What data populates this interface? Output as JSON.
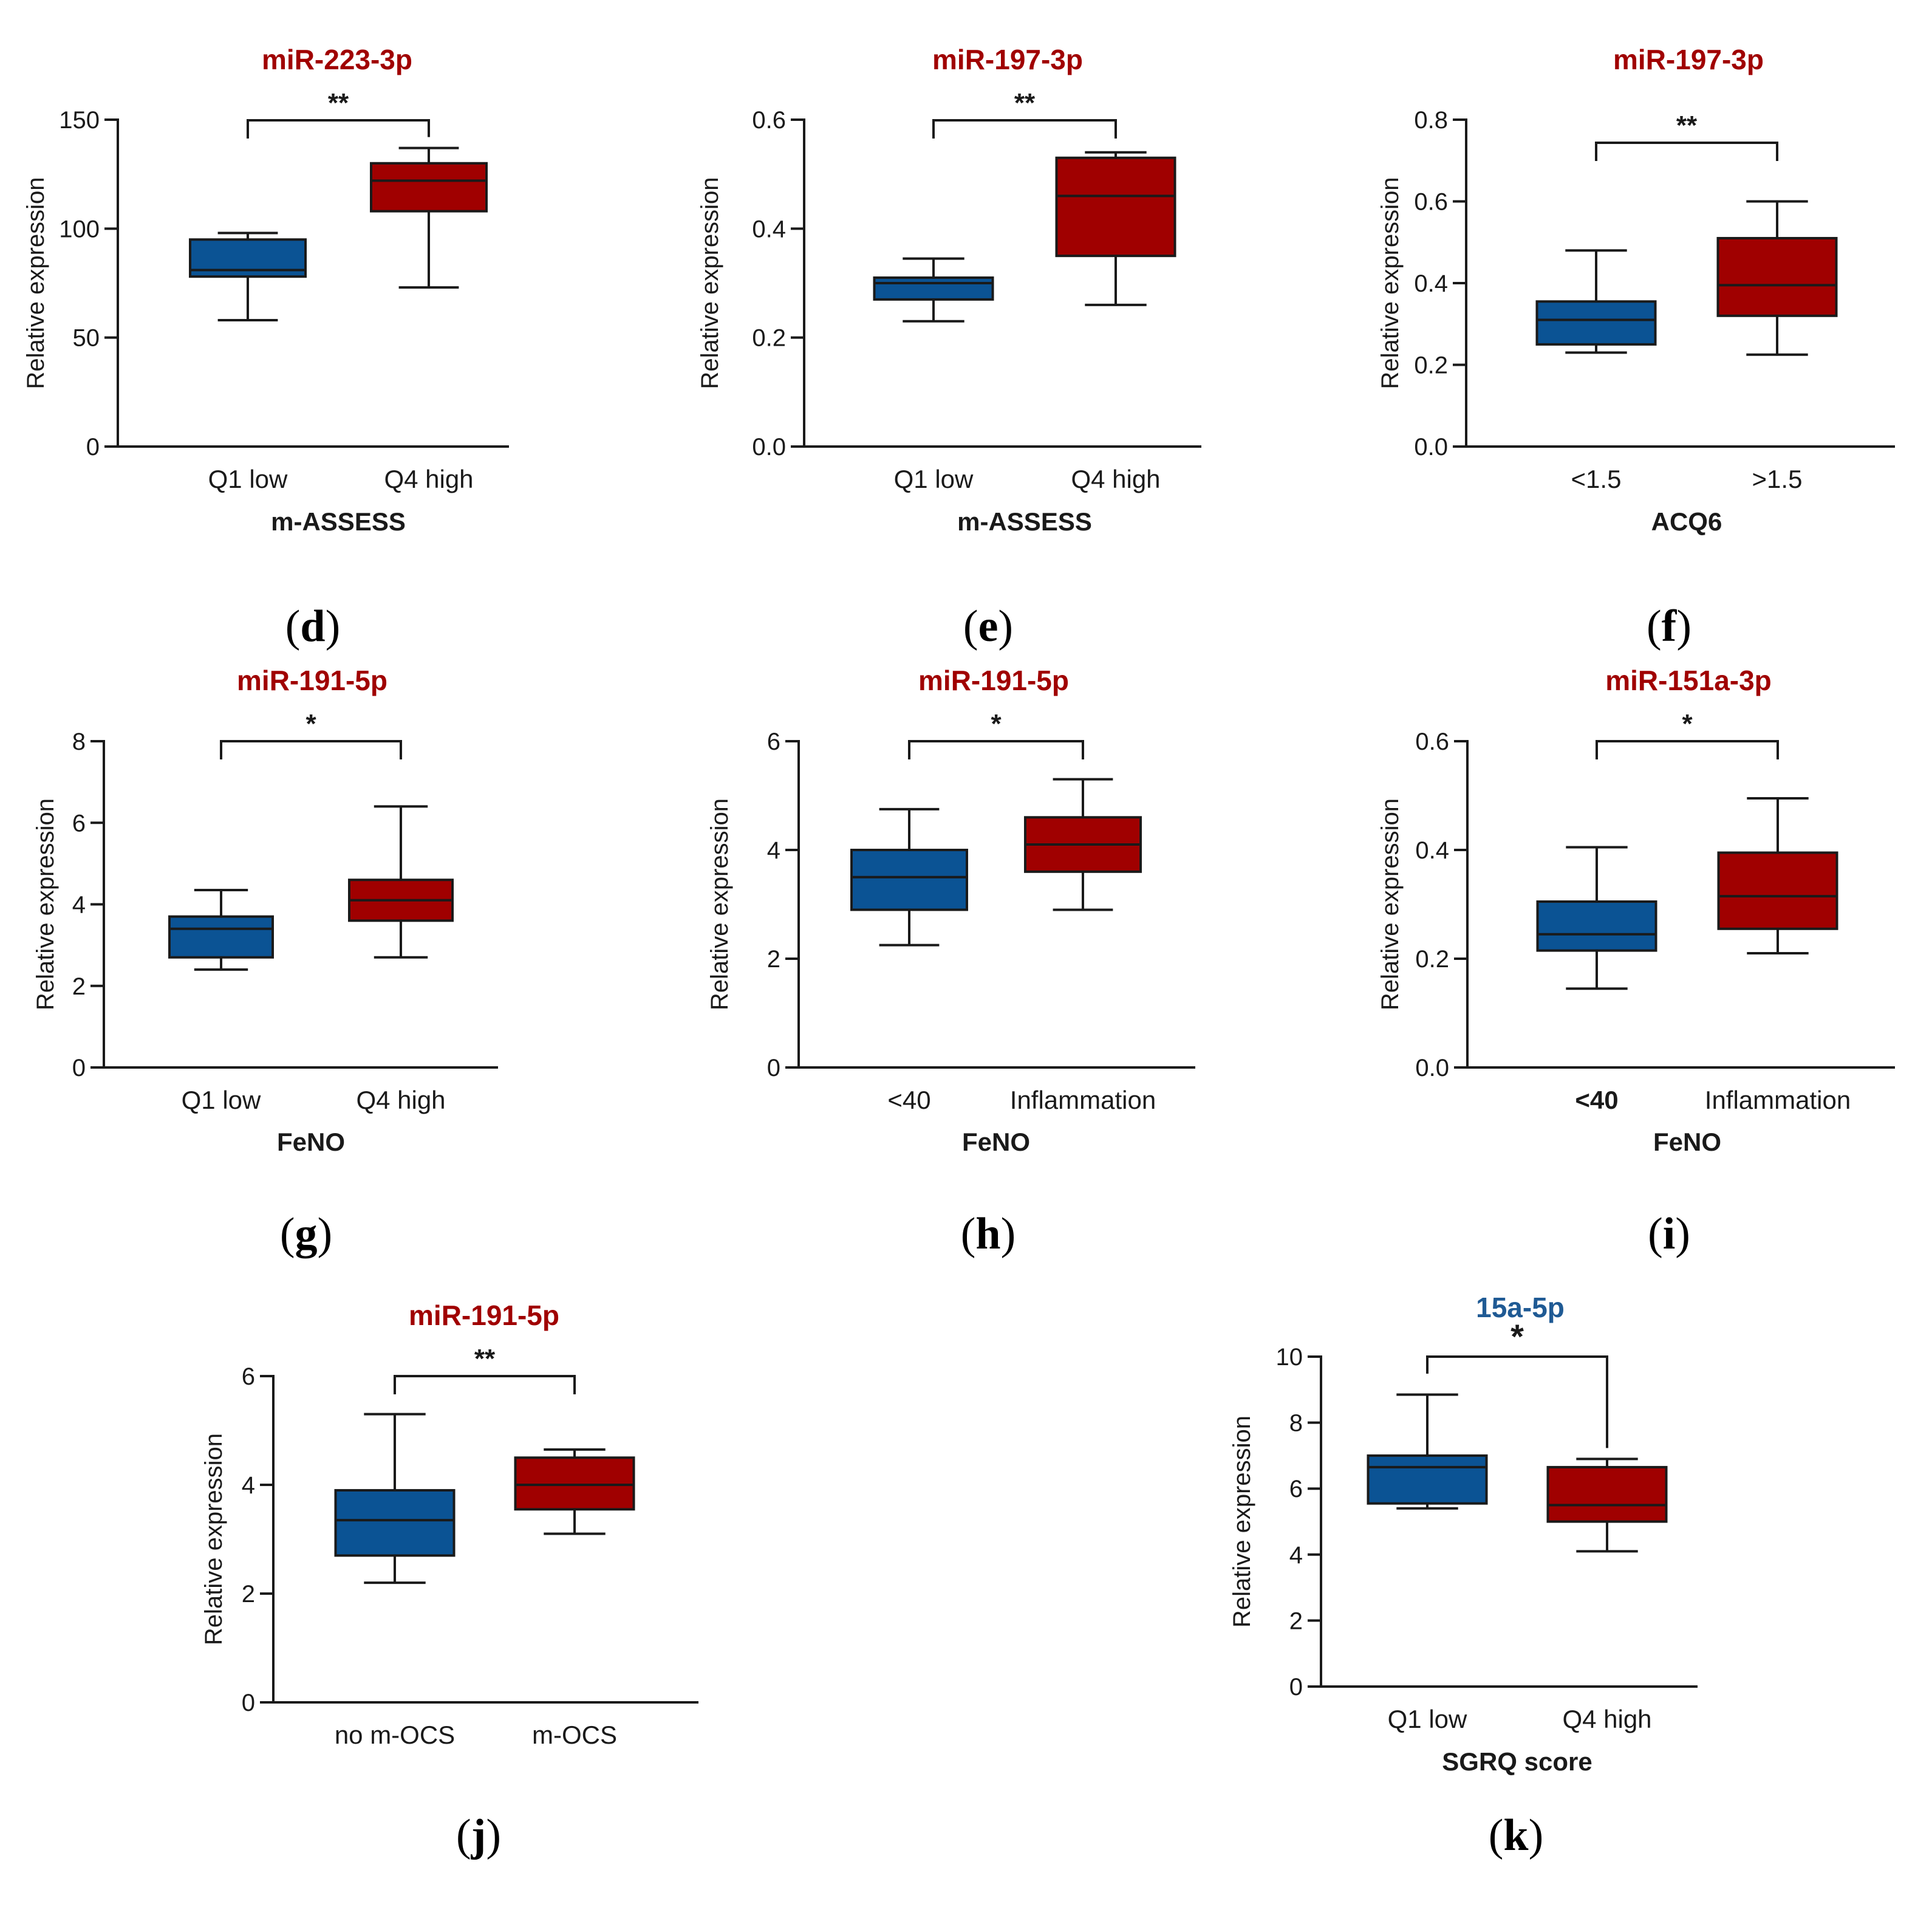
{
  "colors": {
    "blue": "#0b5394",
    "red": "#a00000",
    "title_red": "#a00000",
    "title_blue": "#1f5a94",
    "line": "#1a1a1a"
  },
  "chart_data": [
    {
      "type": "box",
      "panel_label": "d",
      "title": "miR-223-3p",
      "title_color": "red",
      "ylabel": "Relative expression",
      "xlabel": "m-ASSESS",
      "ylim": [
        0,
        150
      ],
      "yticks": [
        0,
        50,
        100,
        150
      ],
      "ytick_labels": [
        "0",
        "50",
        "100",
        "150"
      ],
      "significance": "**",
      "groups": [
        {
          "label": "Q1 low",
          "color": "blue",
          "min": 58,
          "q1": 78,
          "median": 81,
          "q3": 95,
          "max": 98
        },
        {
          "label": "Q4 high",
          "color": "red",
          "min": 73,
          "q1": 108,
          "median": 122,
          "q3": 130,
          "max": 137
        }
      ]
    },
    {
      "type": "box",
      "panel_label": "e",
      "title": "miR-197-3p",
      "title_color": "red",
      "ylabel": "Relative expression",
      "xlabel": "m-ASSESS",
      "ylim": [
        0,
        0.6
      ],
      "yticks": [
        0,
        0.2,
        0.4,
        0.6
      ],
      "ytick_labels": [
        "0.0",
        "0.2",
        "0.4",
        "0.6"
      ],
      "significance": "**",
      "groups": [
        {
          "label": "Q1 low",
          "color": "blue",
          "min": 0.23,
          "q1": 0.27,
          "median": 0.3,
          "q3": 0.31,
          "max": 0.345
        },
        {
          "label": "Q4 high",
          "color": "red",
          "min": 0.26,
          "q1": 0.35,
          "median": 0.46,
          "q3": 0.53,
          "max": 0.54
        }
      ]
    },
    {
      "type": "box",
      "panel_label": "f",
      "title": "miR-197-3p",
      "title_color": "red",
      "ylabel": "Relative expression",
      "xlabel": "ACQ6",
      "ylim": [
        0,
        0.8
      ],
      "yticks": [
        0,
        0.2,
        0.4,
        0.6,
        0.8
      ],
      "ytick_labels": [
        "0.0",
        "0.2",
        "0.4",
        "0.6",
        "0.8"
      ],
      "significance": "**",
      "groups": [
        {
          "label": "<1.5",
          "color": "blue",
          "min": 0.23,
          "q1": 0.25,
          "median": 0.31,
          "q3": 0.355,
          "max": 0.48
        },
        {
          "label": ">1.5",
          "color": "red",
          "min": 0.225,
          "q1": 0.32,
          "median": 0.395,
          "q3": 0.51,
          "max": 0.6
        }
      ]
    },
    {
      "type": "box",
      "panel_label": "g",
      "title": "miR-191-5p",
      "title_color": "red",
      "ylabel": "Relative expression",
      "xlabel": "FeNO",
      "ylim": [
        0,
        8
      ],
      "yticks": [
        0,
        2,
        4,
        6,
        8
      ],
      "ytick_labels": [
        "0",
        "2",
        "4",
        "6",
        "8"
      ],
      "significance": "*",
      "groups": [
        {
          "label": "Q1 low",
          "color": "blue",
          "min": 2.4,
          "q1": 2.7,
          "median": 3.4,
          "q3": 3.7,
          "max": 4.35
        },
        {
          "label": "Q4 high",
          "color": "red",
          "min": 2.7,
          "q1": 3.6,
          "median": 4.1,
          "q3": 4.6,
          "max": 6.4
        }
      ]
    },
    {
      "type": "box",
      "panel_label": "h",
      "title": "miR-191-5p",
      "title_color": "red",
      "ylabel": "Relative expression",
      "xlabel": "FeNO",
      "ylim": [
        0,
        6
      ],
      "yticks": [
        0,
        2,
        4,
        6
      ],
      "ytick_labels": [
        "0",
        "2",
        "4",
        "6"
      ],
      "significance": "*",
      "groups": [
        {
          "label": "<40",
          "color": "blue",
          "min": 2.25,
          "q1": 2.9,
          "median": 3.5,
          "q3": 4.0,
          "max": 4.75
        },
        {
          "label": "Inflammation",
          "color": "red",
          "min": 2.9,
          "q1": 3.6,
          "median": 4.1,
          "q3": 4.6,
          "max": 5.3
        }
      ]
    },
    {
      "type": "box",
      "panel_label": "i",
      "title": "miR-151a-3p",
      "title_color": "red",
      "ylabel": "Relative expression",
      "xlabel": "FeNO",
      "ylim": [
        0,
        0.6
      ],
      "yticks": [
        0,
        0.2,
        0.4,
        0.6
      ],
      "ytick_labels": [
        "0.0",
        "0.2",
        "0.4",
        "0.6"
      ],
      "significance": "*",
      "bold_first_category": true,
      "groups": [
        {
          "label": "<40",
          "color": "blue",
          "min": 0.145,
          "q1": 0.215,
          "median": 0.245,
          "q3": 0.305,
          "max": 0.405
        },
        {
          "label": "Inflammation",
          "color": "red",
          "min": 0.21,
          "q1": 0.255,
          "median": 0.315,
          "q3": 0.395,
          "max": 0.495
        }
      ]
    },
    {
      "type": "box",
      "panel_label": "j",
      "title": "miR-191-5p",
      "title_color": "red",
      "ylabel": "Relative expression",
      "xlabel": "",
      "ylim": [
        0,
        6
      ],
      "yticks": [
        0,
        2,
        4,
        6
      ],
      "ytick_labels": [
        "0",
        "2",
        "4",
        "6"
      ],
      "significance": "**",
      "groups": [
        {
          "label": "no m-OCS",
          "color": "blue",
          "min": 2.2,
          "q1": 2.7,
          "median": 3.35,
          "q3": 3.9,
          "max": 5.3
        },
        {
          "label": "m-OCS",
          "color": "red",
          "min": 3.1,
          "q1": 3.55,
          "median": 4.0,
          "q3": 4.5,
          "max": 4.65
        }
      ]
    },
    {
      "type": "box",
      "panel_label": "k",
      "title": "15a-5p",
      "title_color": "blue",
      "ylabel": "Relative expression",
      "xlabel": "SGRQ score",
      "ylim": [
        0,
        10
      ],
      "yticks": [
        0,
        2,
        4,
        6,
        8,
        10
      ],
      "ytick_labels": [
        "0",
        "2",
        "4",
        "6",
        "8",
        "10"
      ],
      "significance": "*",
      "sig_big": true,
      "groups": [
        {
          "label": "Q1 low",
          "color": "blue",
          "min": 5.4,
          "q1": 5.55,
          "median": 6.65,
          "q3": 7.0,
          "max": 8.85
        },
        {
          "label": "Q4 high",
          "color": "red",
          "min": 4.1,
          "q1": 5.0,
          "median": 5.5,
          "q3": 6.65,
          "max": 6.9
        }
      ]
    }
  ]
}
